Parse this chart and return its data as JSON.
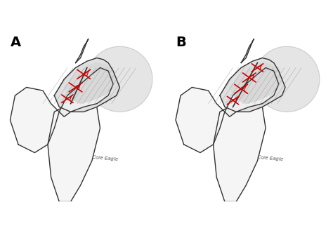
{
  "background_color": "#ffffff",
  "figure_size": [
    4.74,
    3.42
  ],
  "dpi": 100,
  "label_A": "A",
  "label_B": "B",
  "label_fontsize": 14,
  "label_fontweight": "bold",
  "line_color": "#333333",
  "fill_color_bone": "#f5f5f5",
  "fill_color_capsule": "#e8e8e8",
  "fill_color_circle": "#d8d8d8",
  "suture_color": "#cc0000",
  "line_width": 1.0,
  "signature_color": "#555555"
}
